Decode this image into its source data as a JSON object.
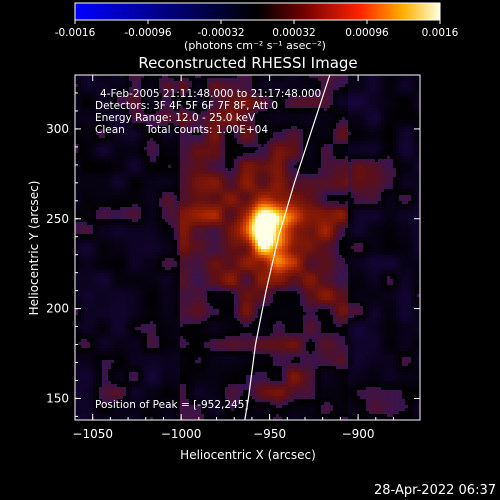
{
  "colorbar": {
    "ticks": [
      "-0.0016",
      "-0.00096",
      "-0.00032",
      "0.00032",
      "0.00096",
      "0.0016"
    ],
    "unit_label": "(photons cm⁻² s⁻¹ asec⁻²)",
    "range": [
      -0.0016,
      0.0016
    ]
  },
  "chart_data": {
    "type": "heatmap",
    "title": "Reconstructed RHESSI Image",
    "xlabel": "Heliocentric X (arcsec)",
    "ylabel": "Heliocentric Y (arcsec)",
    "xlim": [
      -1060,
      -865
    ],
    "ylim": [
      138,
      330
    ],
    "xticks": [
      -1050,
      -1000,
      -950,
      -900
    ],
    "yticks": [
      150,
      200,
      250,
      300
    ],
    "annotations": [
      "4-Feb-2005 21:11:48.000 to 21:17:48.000",
      "Detectors: 3F 4F 5F 6F 7F 8F, Att 0",
      "Energy Range: 12.0 - 25.0 keV",
      "Clean",
      "Total counts: 1.00E+04",
      "Position of Peak = [-952,245]"
    ],
    "peak": {
      "x": -952,
      "y": 245,
      "value": 0.0016
    },
    "limb_curve": [
      {
        "x": -916,
        "y": 330
      },
      {
        "x": -926,
        "y": 300
      },
      {
        "x": -936,
        "y": 270
      },
      {
        "x": -945,
        "y": 240
      },
      {
        "x": -952,
        "y": 210
      },
      {
        "x": -958,
        "y": 180
      },
      {
        "x": -962,
        "y": 150
      },
      {
        "x": -964,
        "y": 138
      }
    ]
  },
  "footer": {
    "date": "28-Apr-2022 06:37"
  }
}
